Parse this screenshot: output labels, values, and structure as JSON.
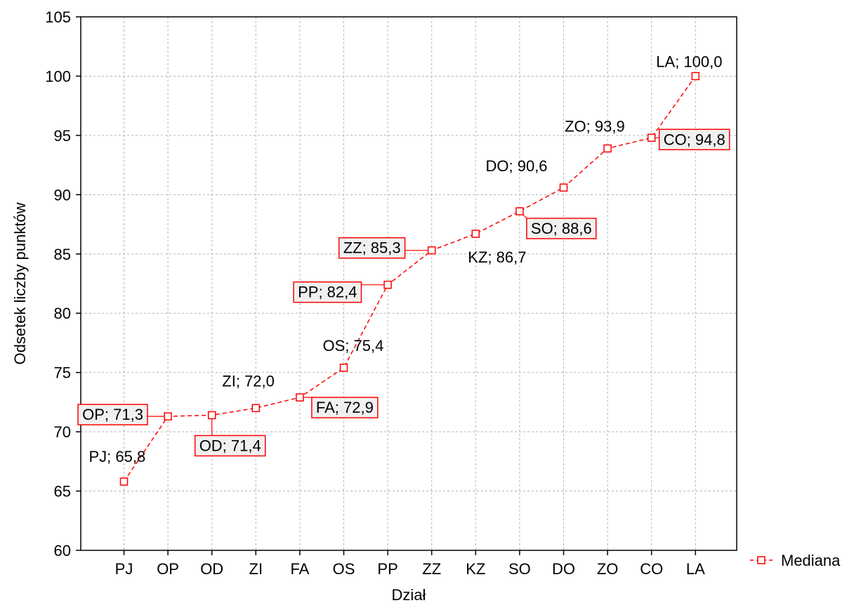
{
  "chart_data": {
    "type": "line",
    "xlabel": "Dział",
    "ylabel": "Odsetek liczby punktów",
    "categories": [
      "PJ",
      "OP",
      "OD",
      "ZI",
      "FA",
      "OS",
      "PP",
      "ZZ",
      "KZ",
      "SO",
      "DO",
      "ZO",
      "CO",
      "LA"
    ],
    "ylim": [
      60,
      105
    ],
    "yticks": [
      60,
      65,
      70,
      75,
      80,
      85,
      90,
      95,
      100,
      105
    ],
    "grid": true,
    "legend_position": "right",
    "series": [
      {
        "name": "Mediana",
        "color": "#ff0000",
        "line_style": "dashed",
        "marker": "open-square",
        "values": [
          65.8,
          71.3,
          71.4,
          72.0,
          72.9,
          75.4,
          82.4,
          85.3,
          86.7,
          88.6,
          90.6,
          93.9,
          94.8,
          100.0
        ]
      }
    ],
    "point_labels": [
      {
        "text": "PJ; 65,8",
        "boxed": false
      },
      {
        "text": "OP; 71,3",
        "boxed": true
      },
      {
        "text": "OD; 71,4",
        "boxed": true
      },
      {
        "text": "ZI; 72,0",
        "boxed": false
      },
      {
        "text": "FA; 72,9",
        "boxed": true
      },
      {
        "text": "OS; 75,4",
        "boxed": false
      },
      {
        "text": "PP; 82,4",
        "boxed": true
      },
      {
        "text": "ZZ; 85,3",
        "boxed": true
      },
      {
        "text": "KZ; 86,7",
        "boxed": false
      },
      {
        "text": "SO; 88,6",
        "boxed": true
      },
      {
        "text": "DO; 90,6",
        "boxed": false
      },
      {
        "text": "ZO; 93,9",
        "boxed": false
      },
      {
        "text": "CO; 94,8",
        "boxed": true
      },
      {
        "text": "LA; 100,0",
        "boxed": false
      }
    ]
  }
}
